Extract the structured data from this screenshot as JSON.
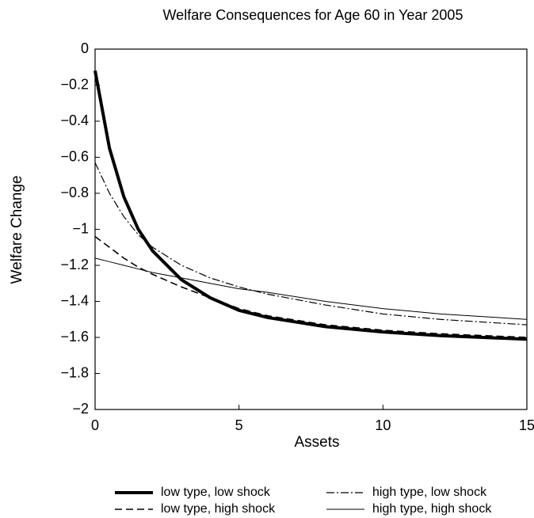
{
  "chart_data": {
    "type": "line",
    "title": "Welfare Consequences for Age 60 in Year 2005",
    "xlabel": "Assets",
    "ylabel": "Welfare Change",
    "x": [
      0,
      0.5,
      1,
      1.5,
      2,
      3,
      4,
      5,
      6,
      8,
      10,
      12,
      15
    ],
    "series": [
      {
        "name": "low type, low shock",
        "color": "#000000",
        "style": "solid",
        "width": 4,
        "values": [
          -0.12,
          -0.55,
          -0.82,
          -1.0,
          -1.12,
          -1.28,
          -1.38,
          -1.45,
          -1.49,
          -1.54,
          -1.57,
          -1.59,
          -1.61
        ]
      },
      {
        "name": "low type, high shock",
        "color": "#000000",
        "style": "dashed",
        "width": 1.6,
        "values": [
          -1.04,
          -1.1,
          -1.16,
          -1.21,
          -1.25,
          -1.32,
          -1.38,
          -1.44,
          -1.48,
          -1.53,
          -1.56,
          -1.58,
          -1.6
        ]
      },
      {
        "name": "high type, low shock",
        "color": "#000000",
        "style": "dashdot",
        "width": 1.2,
        "values": [
          -0.63,
          -0.8,
          -0.93,
          -1.03,
          -1.1,
          -1.2,
          -1.27,
          -1.32,
          -1.36,
          -1.42,
          -1.47,
          -1.5,
          -1.53
        ]
      },
      {
        "name": "high type, high shock",
        "color": "#000000",
        "style": "solid",
        "width": 1,
        "values": [
          -1.16,
          -1.18,
          -1.2,
          -1.22,
          -1.24,
          -1.27,
          -1.3,
          -1.33,
          -1.35,
          -1.4,
          -1.44,
          -1.47,
          -1.5
        ]
      }
    ],
    "xlim": [
      0,
      15
    ],
    "xticks": [
      0,
      5,
      10,
      15
    ],
    "ylim": [
      -2,
      0
    ],
    "yticks": [
      {
        "value": -2,
        "label": "−2"
      },
      {
        "value": -1.8,
        "label": "−1.8"
      },
      {
        "value": -1.6,
        "label": "−1.6"
      },
      {
        "value": -1.4,
        "label": "−1.4"
      },
      {
        "value": -1.2,
        "label": "−1.2"
      },
      {
        "value": -1,
        "label": "−1"
      },
      {
        "value": -0.8,
        "label": "−0.8"
      },
      {
        "value": -0.6,
        "label": "−0.6"
      },
      {
        "value": -0.4,
        "label": "−0.4"
      },
      {
        "value": -0.2,
        "label": "−0.2"
      },
      0
    ],
    "legend": "bottom"
  }
}
